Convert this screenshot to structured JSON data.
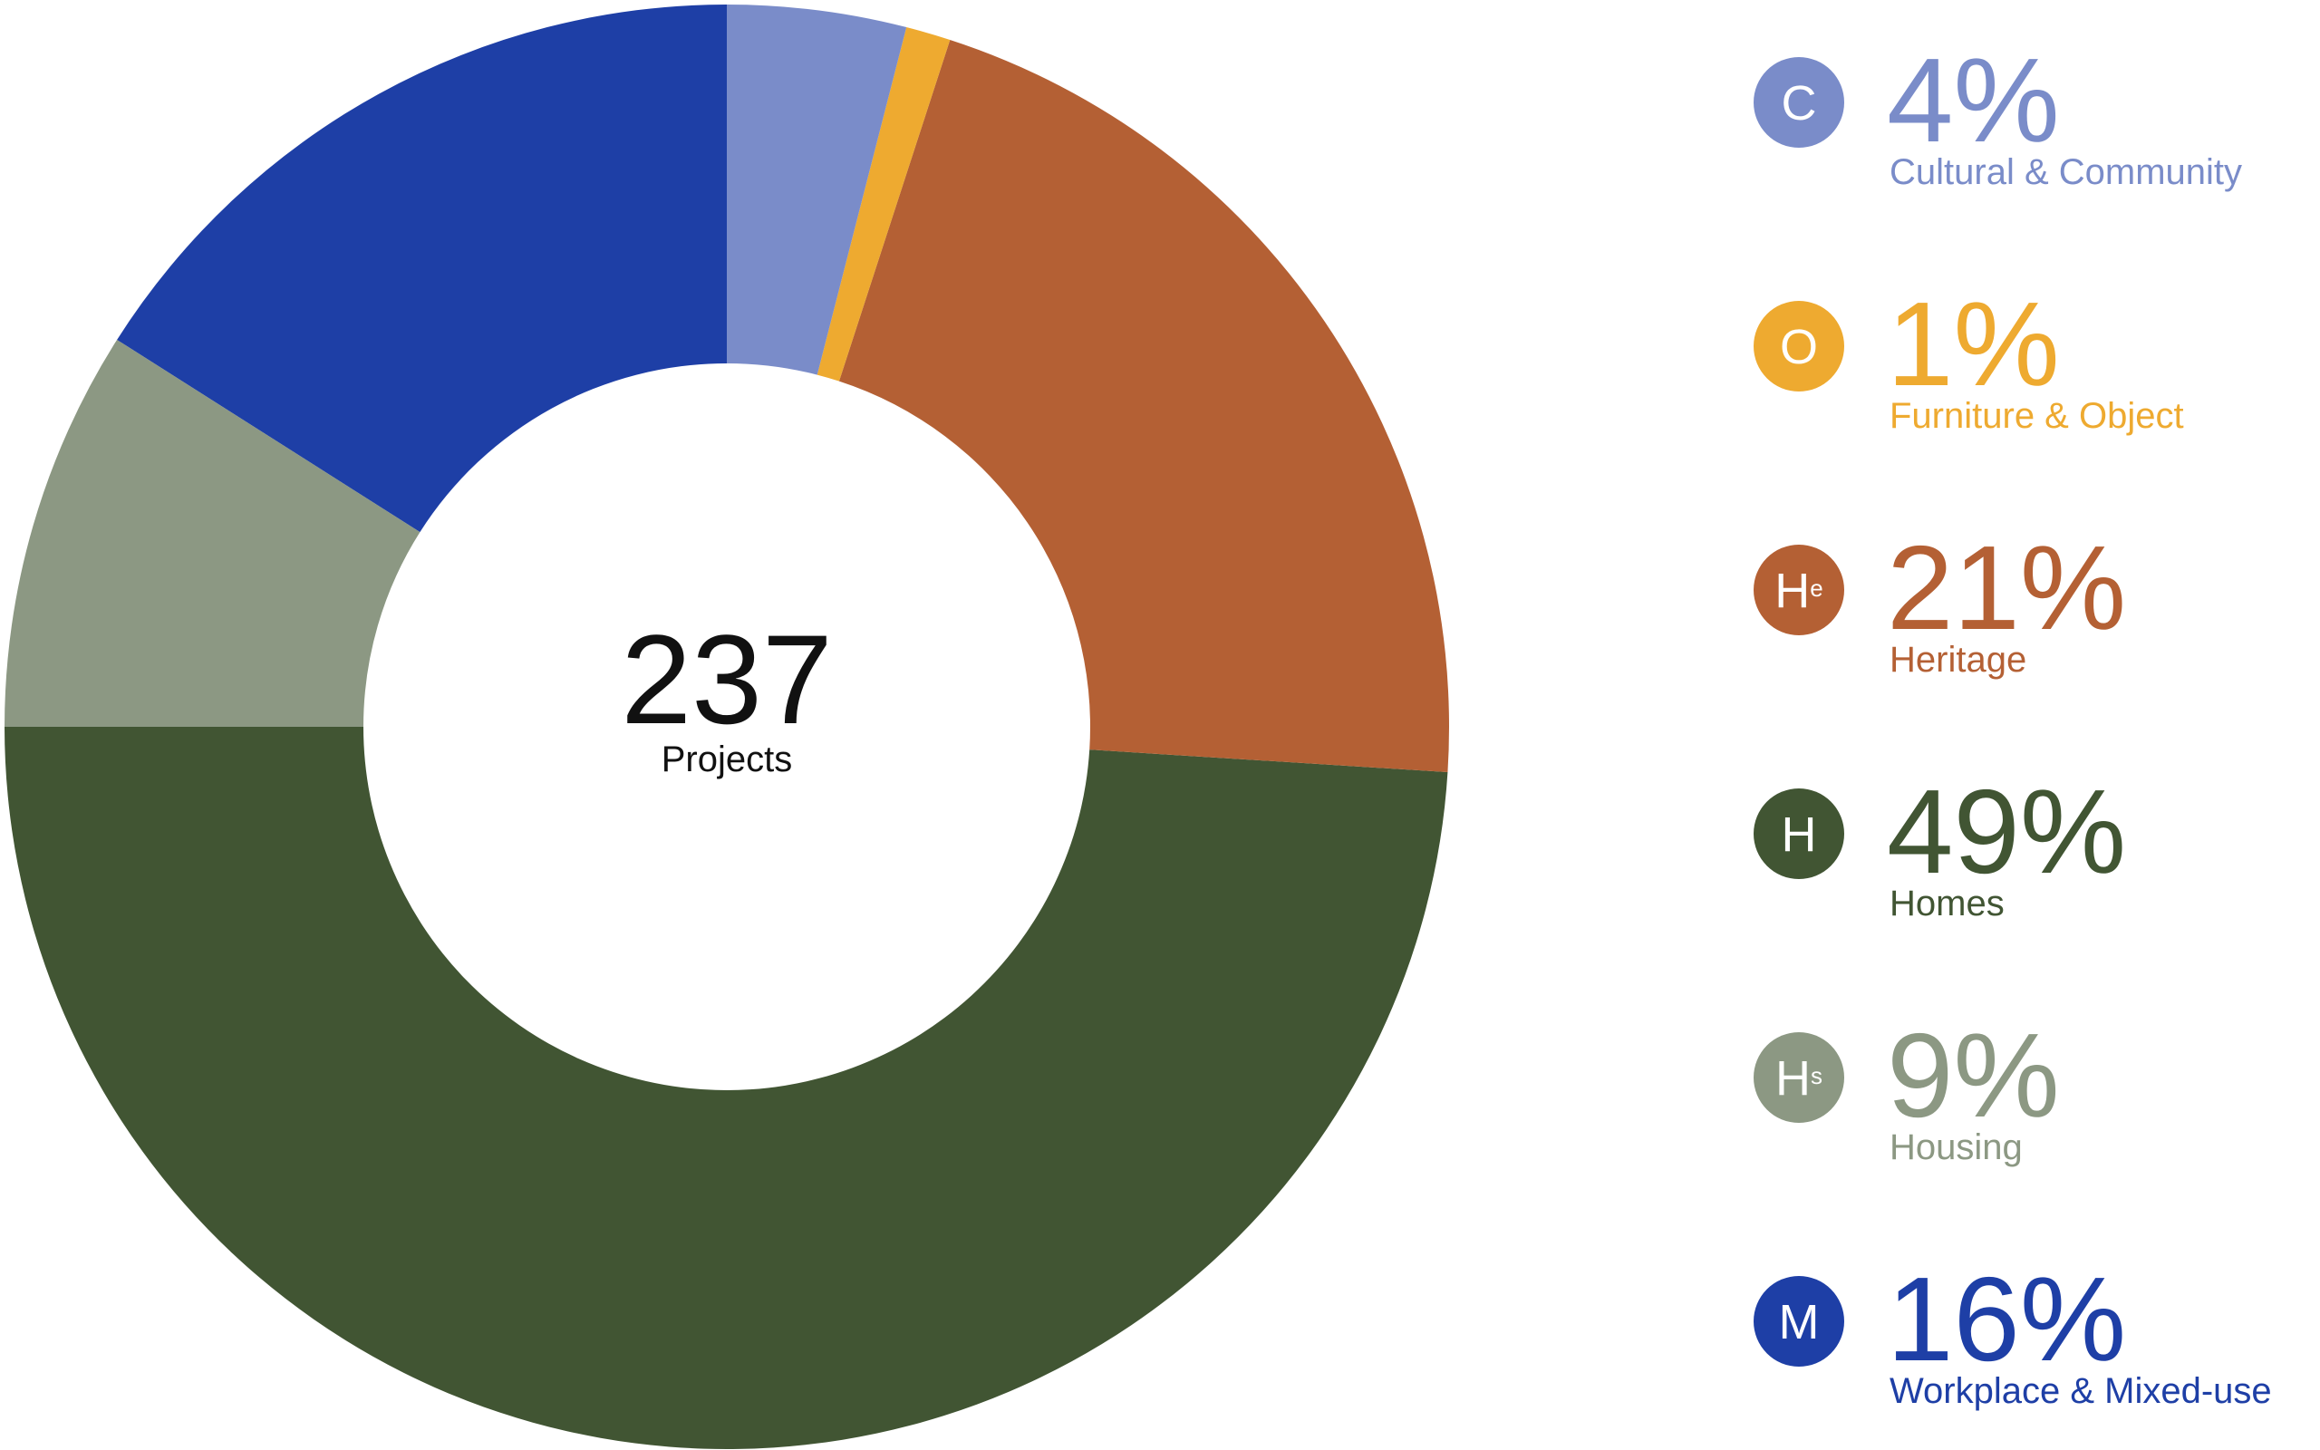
{
  "chart_data": {
    "type": "donut",
    "center_value": "237",
    "center_label": "Projects",
    "categories": [
      "Cultural & Community",
      "Furniture & Object",
      "Heritage",
      "Homes",
      "Housing",
      "Workplace & Mixed-use"
    ],
    "icons": [
      "C",
      "O",
      "He",
      "H",
      "Hs",
      "M"
    ],
    "values": [
      4,
      1,
      21,
      49,
      9,
      16
    ],
    "value_labels": [
      "4%",
      "1%",
      "21%",
      "49%",
      "9%",
      "16%"
    ],
    "colors": [
      "#7a8cc9",
      "#eeaa30",
      "#b46034",
      "#415533",
      "#8c9883",
      "#1e3fa6"
    ]
  }
}
